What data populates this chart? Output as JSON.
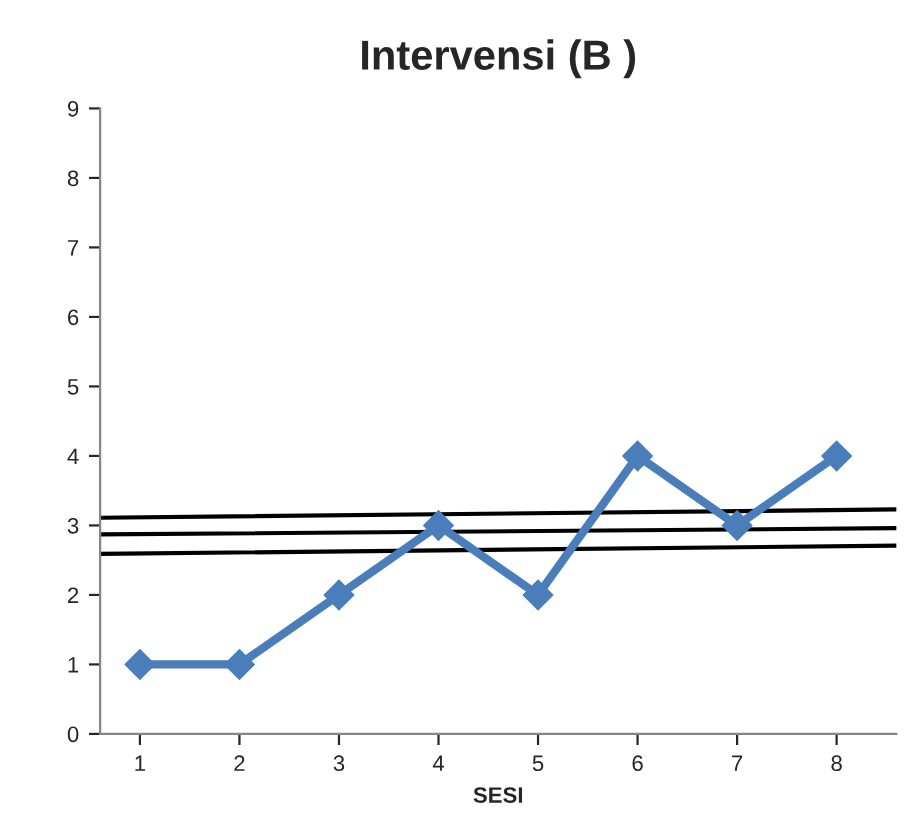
{
  "chart_data": {
    "type": "line",
    "title": "Intervensi (B )",
    "xlabel": "SESI",
    "xlim": [
      0.6,
      8.6
    ],
    "xticks": [
      1,
      2,
      3,
      4,
      5,
      6,
      7,
      8
    ],
    "ylim": [
      0,
      9
    ],
    "yticks": [
      0,
      1,
      2,
      3,
      4,
      5,
      6,
      7,
      8,
      9
    ],
    "grid": false,
    "series": [
      {
        "color": "#4a7ebb",
        "marker": "diamond",
        "x": [
          1,
          2,
          3,
          4,
          5,
          6,
          7,
          8
        ],
        "values": [
          1,
          1,
          2,
          3,
          2,
          4,
          3,
          4
        ]
      },
      {
        "type": "line",
        "color": "#000000",
        "marker": "none",
        "x": [
          0.6,
          8.6
        ],
        "values": [
          3.11,
          3.23
        ]
      },
      {
        "type": "line",
        "color": "#000000",
        "marker": "none",
        "x": [
          0.6,
          8.6
        ],
        "values": [
          2.87,
          2.96
        ]
      },
      {
        "type": "line",
        "color": "#000000",
        "marker": "none",
        "x": [
          0.6,
          8.6
        ],
        "values": [
          2.59,
          2.71
        ]
      }
    ]
  }
}
